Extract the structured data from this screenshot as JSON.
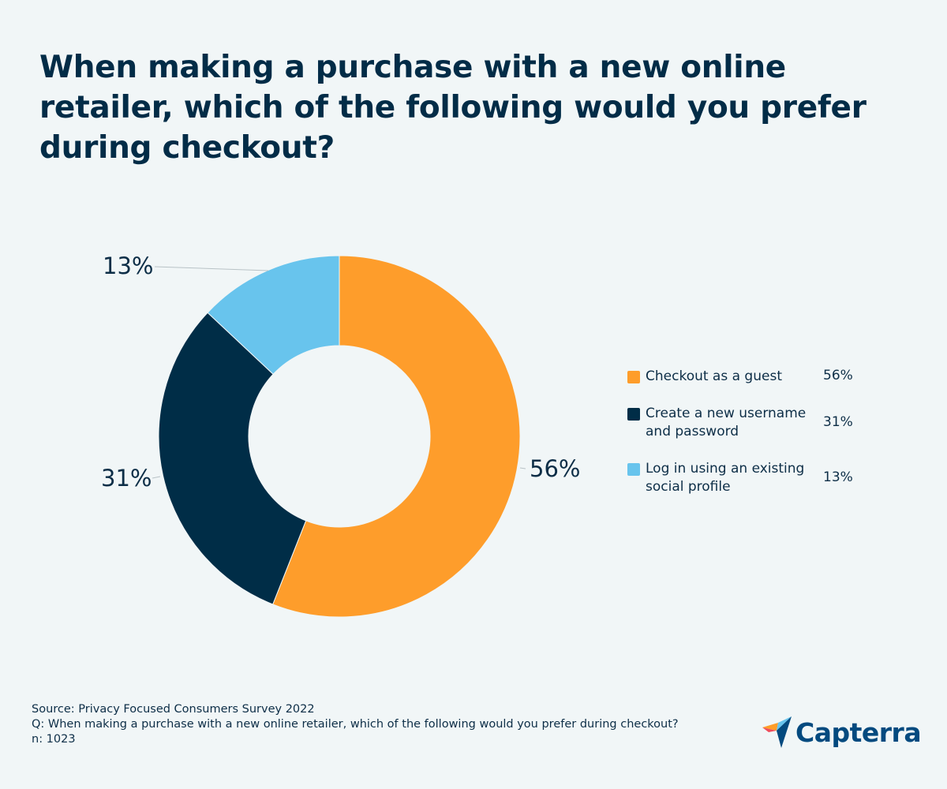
{
  "title": "When making a purchase with a new online retailer, which of the following would you prefer during checkout?",
  "chart_data": {
    "type": "pie",
    "variant": "donut",
    "title": "When making a purchase with a new online retailer, which of the following would you prefer during checkout?",
    "categories": [
      "Checkout as a guest",
      "Create a new username and password",
      "Log in using an existing social profile"
    ],
    "values": [
      56,
      31,
      13
    ],
    "value_labels": [
      "56%",
      "31%",
      "13%"
    ],
    "colors": [
      "#fe9d2b",
      "#002d47",
      "#68c4ed"
    ],
    "legend_position": "right",
    "start_angle_deg": 0,
    "direction": "clockwise"
  },
  "legend": [
    {
      "label": "Checkout as a guest",
      "value": "56%",
      "color": "#fe9d2b"
    },
    {
      "label": "Create a new username and password",
      "value": "31%",
      "color": "#002d47"
    },
    {
      "label": "Log in using an existing social profile",
      "value": "13%",
      "color": "#68c4ed"
    }
  ],
  "slice_labels": {
    "guest": "56%",
    "create": "31%",
    "social": "13%"
  },
  "footer": {
    "source": "Source: Privacy Focused Consumers Survey 2022",
    "question": "Q: When making a purchase with a new online retailer, which of the following would you prefer during checkout?",
    "n": "n: 1023"
  },
  "logo": {
    "text": "Capterra"
  }
}
